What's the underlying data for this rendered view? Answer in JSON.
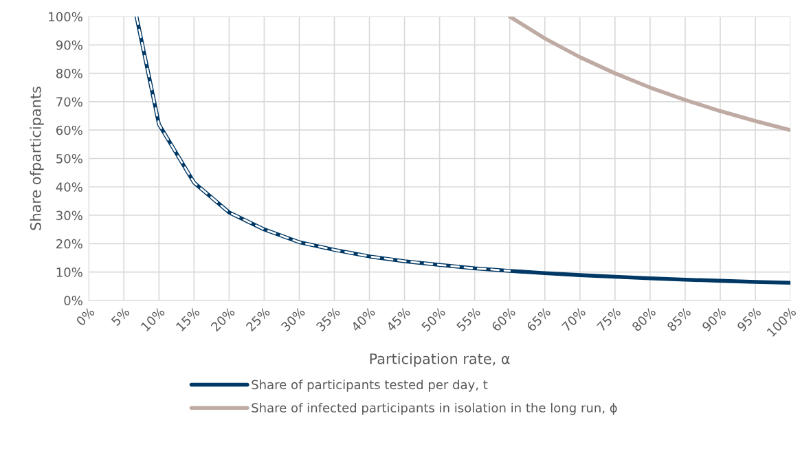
{
  "chart_data": {
    "type": "line",
    "xlabel": "Participation rate, α",
    "ylabel": "Share ofparticipants",
    "xlim": [
      0,
      100
    ],
    "ylim": [
      0,
      100
    ],
    "xticks": [
      {
        "value": 0,
        "label": "0%"
      },
      {
        "value": 5,
        "label": "5%"
      },
      {
        "value": 10,
        "label": "10%"
      },
      {
        "value": 15,
        "label": "15%"
      },
      {
        "value": 20,
        "label": "20%"
      },
      {
        "value": 25,
        "label": "25%"
      },
      {
        "value": 30,
        "label": "30%"
      },
      {
        "value": 35,
        "label": "35%"
      },
      {
        "value": 40,
        "label": "40%"
      },
      {
        "value": 45,
        "label": "45%"
      },
      {
        "value": 50,
        "label": "50%"
      },
      {
        "value": 55,
        "label": "55%"
      },
      {
        "value": 60,
        "label": "60%"
      },
      {
        "value": 65,
        "label": "65%"
      },
      {
        "value": 70,
        "label": "70%"
      },
      {
        "value": 75,
        "label": "75%"
      },
      {
        "value": 80,
        "label": "80%"
      },
      {
        "value": 85,
        "label": "85%"
      },
      {
        "value": 90,
        "label": "90%"
      },
      {
        "value": 95,
        "label": "95%"
      },
      {
        "value": 100,
        "label": "100%"
      }
    ],
    "yticks": [
      {
        "value": 0,
        "label": "0%"
      },
      {
        "value": 10,
        "label": "10%"
      },
      {
        "value": 20,
        "label": "20%"
      },
      {
        "value": 30,
        "label": "30%"
      },
      {
        "value": 40,
        "label": "40%"
      },
      {
        "value": 50,
        "label": "50%"
      },
      {
        "value": 60,
        "label": "60%"
      },
      {
        "value": 70,
        "label": "70%"
      },
      {
        "value": 80,
        "label": "80%"
      },
      {
        "value": 90,
        "label": "90%"
      },
      {
        "value": 100,
        "label": "100%"
      }
    ],
    "grid": true,
    "legend": "bottom",
    "marker": "none",
    "series": [
      {
        "name": "Share of participants tested per day, t",
        "color": "#003865",
        "line_style": "solid",
        "x": [
          6.8,
          10,
          15,
          20,
          25,
          30,
          35,
          40,
          45,
          50,
          55,
          60,
          65,
          70,
          75,
          80,
          85,
          90,
          95,
          100
        ],
        "values": [
          100,
          62,
          41.5,
          31,
          25,
          20.5,
          17.8,
          15.5,
          13.8,
          12.5,
          11.3,
          10.4,
          9.6,
          8.9,
          8.3,
          7.8,
          7.3,
          6.9,
          6.5,
          6.2
        ]
      },
      {
        "name": "Share of infected participants in isolation in the long run, ϕ",
        "color": "#bfaba3",
        "line_style": "solid",
        "x": [
          60,
          65,
          70,
          75,
          80,
          85,
          90,
          95,
          100
        ],
        "values": [
          100,
          92.3,
          85.7,
          80,
          75,
          70.6,
          66.7,
          63.2,
          60
        ]
      },
      {
        "color": "#ffffff",
        "line_style": "dashed",
        "x": [
          6.8,
          10,
          15,
          20,
          25,
          30,
          35,
          40,
          45,
          50,
          55,
          60
        ],
        "values": [
          100,
          62,
          41.5,
          31,
          25,
          20.5,
          17.8,
          15.5,
          13.8,
          12.5,
          11.3,
          10.4
        ]
      }
    ]
  }
}
